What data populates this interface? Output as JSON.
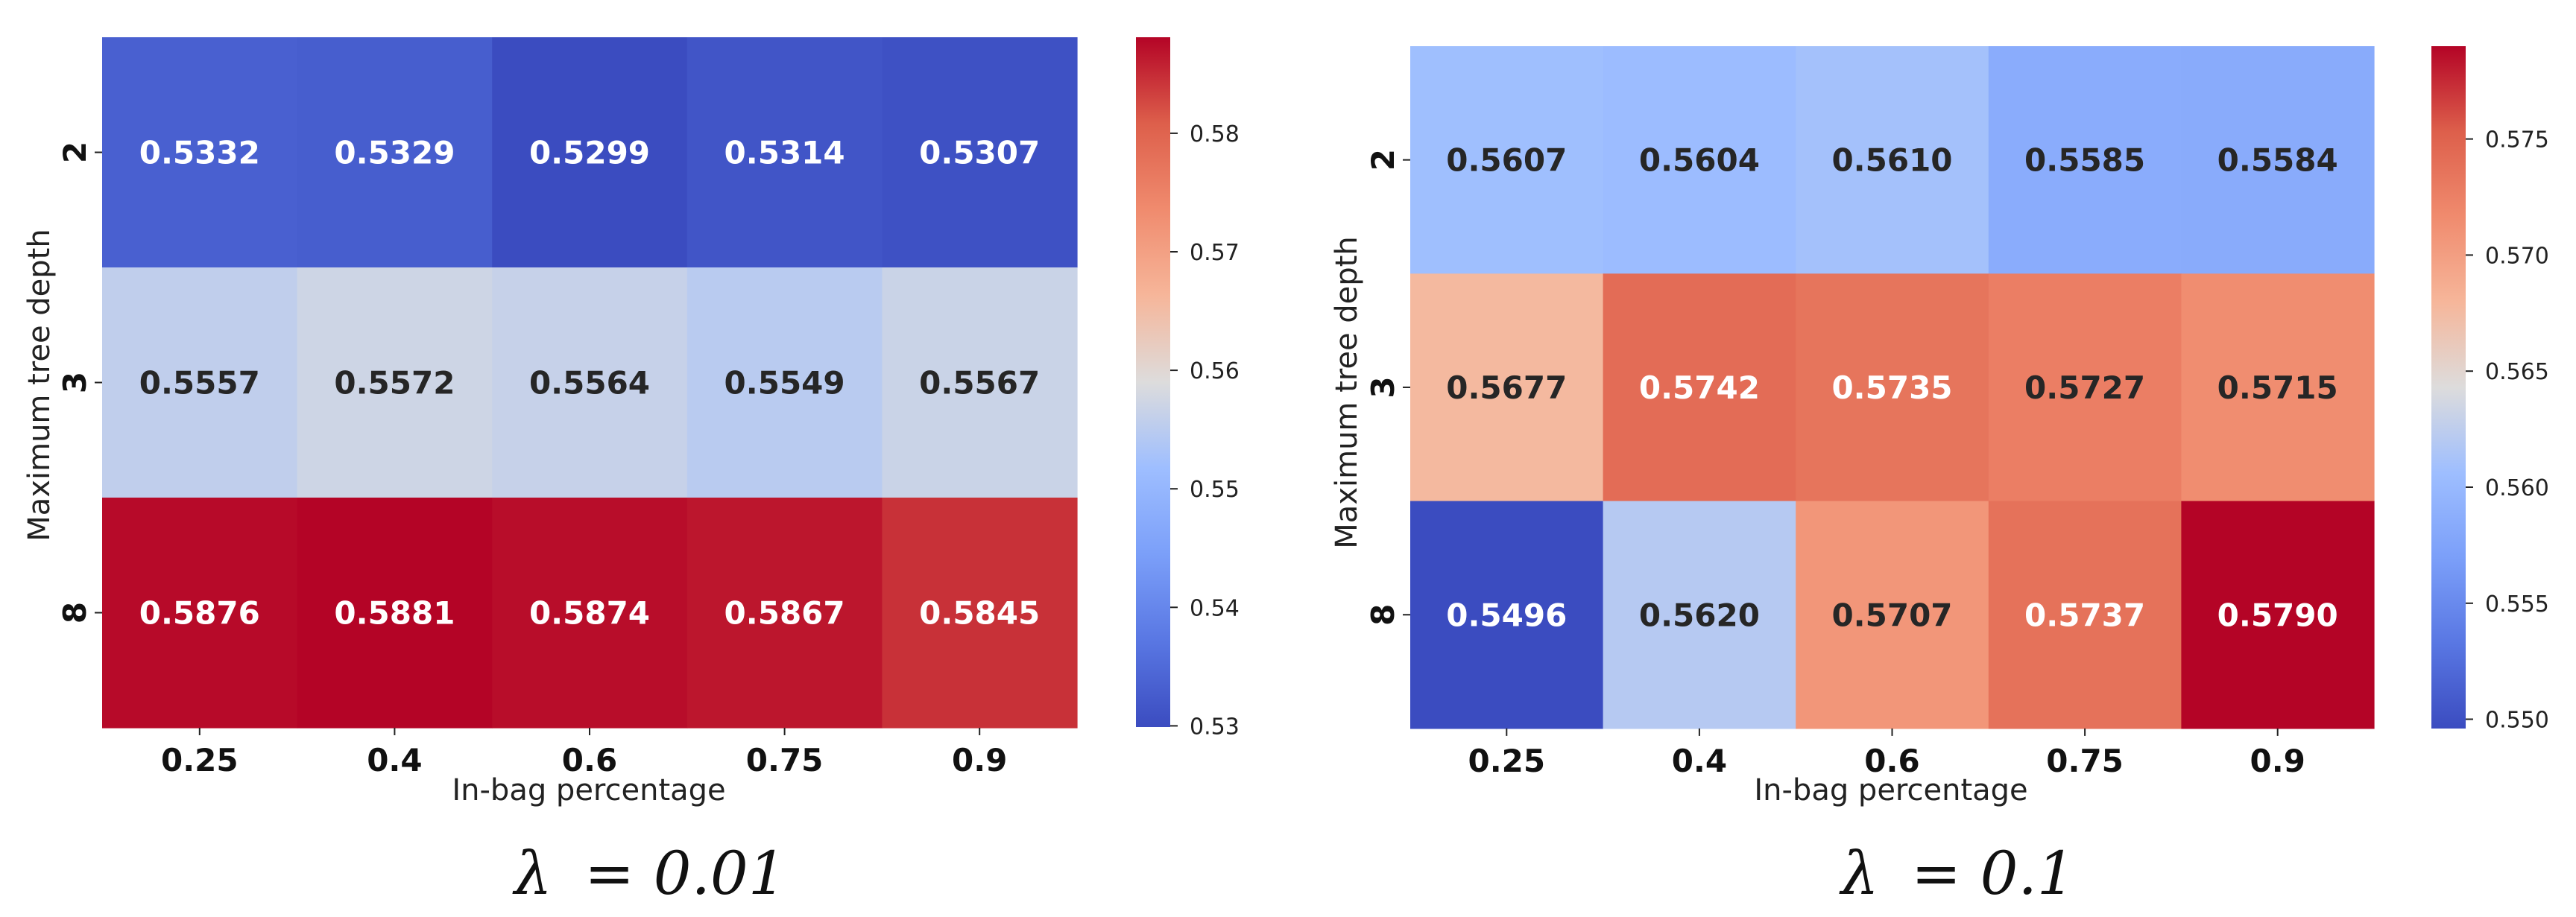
{
  "chart_data": [
    {
      "type": "heatmap",
      "caption_symbol": "λ",
      "caption_value": "= 0.01",
      "xlabel": "In-bag percentage",
      "ylabel": "Maximum tree depth",
      "x_categories": [
        "0.25",
        "0.4",
        "0.6",
        "0.75",
        "0.9"
      ],
      "y_categories": [
        "2",
        "3",
        "8"
      ],
      "values": [
        [
          0.5332,
          0.5329,
          0.5299,
          0.5314,
          0.5307
        ],
        [
          0.5557,
          0.5572,
          0.5564,
          0.5549,
          0.5567
        ],
        [
          0.5876,
          0.5881,
          0.5874,
          0.5867,
          0.5845
        ]
      ],
      "labels": [
        [
          "0.5332",
          "0.5329",
          "0.5299",
          "0.5314",
          "0.5307"
        ],
        [
          "0.5557",
          "0.5572",
          "0.5564",
          "0.5549",
          "0.5567"
        ],
        [
          "0.5876",
          "0.5881",
          "0.5874",
          "0.5867",
          "0.5845"
        ]
      ],
      "colorbar": {
        "vmin": 0.5299,
        "vmax": 0.5881,
        "ticks": [
          0.53,
          0.54,
          0.55,
          0.56,
          0.57,
          0.58
        ],
        "tick_labels": [
          "0.53",
          "0.54",
          "0.55",
          "0.56",
          "0.57",
          "0.58"
        ]
      },
      "colormap": "coolwarm"
    },
    {
      "type": "heatmap",
      "caption_symbol": "λ",
      "caption_value": "= 0.1",
      "xlabel": "In-bag percentage",
      "ylabel": "Maximum tree depth",
      "x_categories": [
        "0.25",
        "0.4",
        "0.6",
        "0.75",
        "0.9"
      ],
      "y_categories": [
        "2",
        "3",
        "8"
      ],
      "values": [
        [
          0.5607,
          0.5604,
          0.561,
          0.5585,
          0.5584
        ],
        [
          0.5677,
          0.5742,
          0.5735,
          0.5727,
          0.5715
        ],
        [
          0.5496,
          0.562,
          0.5707,
          0.5737,
          0.579
        ]
      ],
      "labels": [
        [
          "0.5607",
          "0.5604",
          "0.5610",
          "0.5585",
          "0.5584"
        ],
        [
          "0.5677",
          "0.5742",
          "0.5735",
          "0.5727",
          "0.5715"
        ],
        [
          "0.5496",
          "0.5620",
          "0.5707",
          "0.5737",
          "0.5790"
        ]
      ],
      "colorbar": {
        "vmin": 0.5496,
        "vmax": 0.579,
        "ticks": [
          0.55,
          0.555,
          0.56,
          0.565,
          0.57,
          0.575
        ],
        "tick_labels": [
          "0.550",
          "0.555",
          "0.560",
          "0.565",
          "0.570",
          "0.575"
        ]
      },
      "colormap": "coolwarm"
    }
  ]
}
